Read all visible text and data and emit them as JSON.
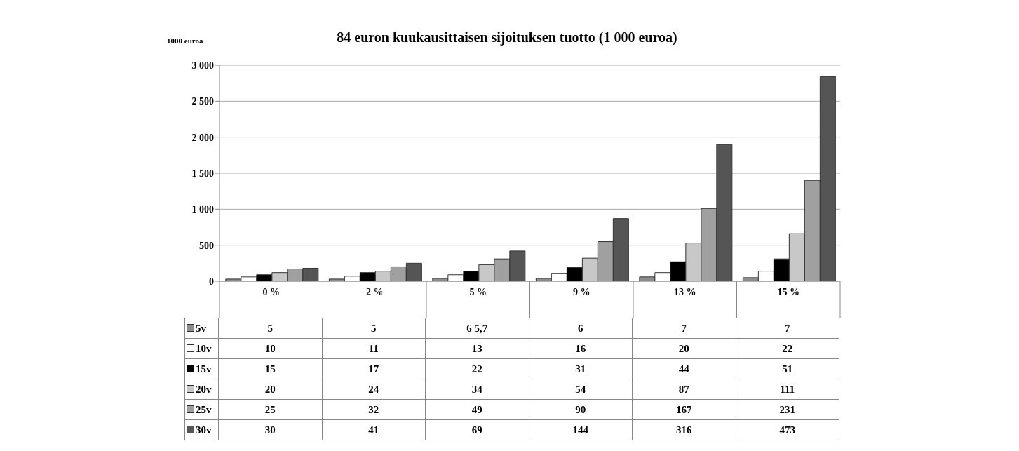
{
  "chart_data": {
    "type": "bar",
    "title": "84 euron kuukausittaisen sijoituksen tuotto (1 000 euroa)",
    "ylabel": "1000 euroa",
    "categories": [
      "0 %",
      "2 %",
      "5 %",
      "9 %",
      "13 %",
      "15 %"
    ],
    "series": [
      {
        "name": "5v",
        "color": "#8c8c8c",
        "values": [
          30,
          30,
          40,
          40,
          60,
          50
        ]
      },
      {
        "name": "10v",
        "color": "#ffffff",
        "values": [
          60,
          70,
          90,
          110,
          120,
          140
        ]
      },
      {
        "name": "15v",
        "color": "#000000",
        "values": [
          90,
          120,
          140,
          190,
          270,
          310
        ]
      },
      {
        "name": "20v",
        "color": "#c8c8c8",
        "values": [
          120,
          140,
          230,
          320,
          530,
          660
        ]
      },
      {
        "name": "25v",
        "color": "#a0a0a0",
        "values": [
          170,
          200,
          310,
          550,
          1010,
          1400
        ]
      },
      {
        "name": "30v",
        "color": "#555555",
        "values": [
          180,
          250,
          420,
          870,
          1900,
          2840
        ]
      }
    ],
    "annotations": [
      "5",
      "5",
      "6 5,7",
      "6",
      "7",
      "7",
      "10",
      "11",
      "13",
      "16",
      "20",
      "22",
      "15",
      "17",
      "22",
      "31",
      "44",
      "51",
      "20",
      "24",
      "34",
      "54",
      "87",
      "111",
      "25",
      "32",
      "49",
      "90",
      "167",
      "231",
      "30",
      "41",
      "69",
      "144",
      "316",
      "473"
    ],
    "ylim": [
      0,
      3000
    ],
    "yticks": [
      0,
      500,
      {
        "value": 1000,
        "label": "1 000"
      },
      {
        "value": 1500,
        "label": "1 500"
      },
      {
        "value": 2000,
        "label": "2 000"
      },
      {
        "value": 2500,
        "label": "2 500"
      },
      {
        "value": 3000,
        "label": "3 000"
      }
    ],
    "grid": "y",
    "legend": "bottom"
  }
}
